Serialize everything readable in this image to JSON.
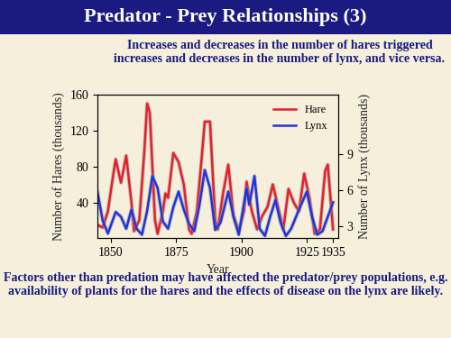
{
  "chart_data": {
    "type": "line",
    "title": "Predator - Prey Relationships (3)",
    "subtitle": "Increases and decreases in the number of hares triggered increases and decreases in the number of lynx, and vice versa.",
    "annotations": [
      "Factors other than predation may have affected the predator/prey populations, e.g. availability of plants for the hares and the effects of disease on the lynx are likely."
    ],
    "x_label": "Year",
    "y_label": "Number of Hares (thousands)",
    "y2_label": "Number of Lynx (thousands)",
    "xlim": [
      1845,
      1937
    ],
    "xticks": [
      1850,
      1875,
      1900,
      1925,
      1935
    ],
    "ylim": [
      0,
      160
    ],
    "yticks": [
      40,
      80,
      120,
      160
    ],
    "y2lim": [
      2,
      14
    ],
    "y2ticks": [
      3,
      6,
      9
    ],
    "legend": "upper right",
    "grid": false,
    "series": [
      {
        "name": "Hare",
        "color": "#e8202a",
        "x": [
          1845,
          1847,
          1849,
          1851,
          1852,
          1854,
          1856,
          1858,
          1859,
          1861,
          1863,
          1864,
          1865,
          1867,
          1868,
          1870,
          1871,
          1872,
          1874,
          1876,
          1878,
          1880,
          1881,
          1883,
          1885,
          1886,
          1888,
          1890,
          1891,
          1893,
          1895,
          1897,
          1899,
          1901,
          1902,
          1904,
          1906,
          1908,
          1910,
          1912,
          1914,
          1916,
          1918,
          1920,
          1922,
          1924,
          1926,
          1928,
          1930,
          1932,
          1933,
          1935
        ],
        "values": [
          15,
          12,
          30,
          70,
          88,
          62,
          92,
          40,
          8,
          20,
          100,
          150,
          140,
          20,
          5,
          30,
          50,
          45,
          95,
          85,
          60,
          10,
          5,
          30,
          95,
          130,
          130,
          20,
          10,
          50,
          82,
          25,
          8,
          30,
          63,
          30,
          10,
          25,
          35,
          60,
          35,
          10,
          55,
          40,
          30,
          72,
          45,
          5,
          10,
          75,
          82,
          10
        ]
      },
      {
        "name": "Lynx",
        "color": "#2233dd",
        "axis": "y2",
        "x": [
          1845,
          1847,
          1849,
          1852,
          1854,
          1856,
          1858,
          1860,
          1862,
          1864,
          1866,
          1868,
          1870,
          1872,
          1874,
          1876,
          1878,
          1880,
          1882,
          1884,
          1886,
          1888,
          1890,
          1892,
          1895,
          1897,
          1899,
          1902,
          1903,
          1905,
          1907,
          1909,
          1911,
          1913,
          1915,
          1917,
          1919,
          1922,
          1925,
          1927,
          1929,
          1931,
          1933,
          1935
        ],
        "values": [
          5.9,
          3.5,
          2.4,
          4.2,
          3.8,
          2.8,
          4.4,
          2.8,
          2.3,
          4.3,
          7.2,
          6.2,
          3.4,
          2.8,
          4.6,
          5.9,
          4.4,
          3.2,
          2.6,
          4.8,
          7.7,
          6.2,
          2.7,
          3.3,
          5.9,
          3.8,
          2.3,
          6.2,
          4.8,
          7.2,
          2.8,
          2.2,
          3.8,
          5.2,
          3.3,
          2.2,
          2.8,
          4.4,
          5.9,
          3.8,
          2.3,
          2.6,
          3.8,
          5.0
        ]
      }
    ]
  }
}
